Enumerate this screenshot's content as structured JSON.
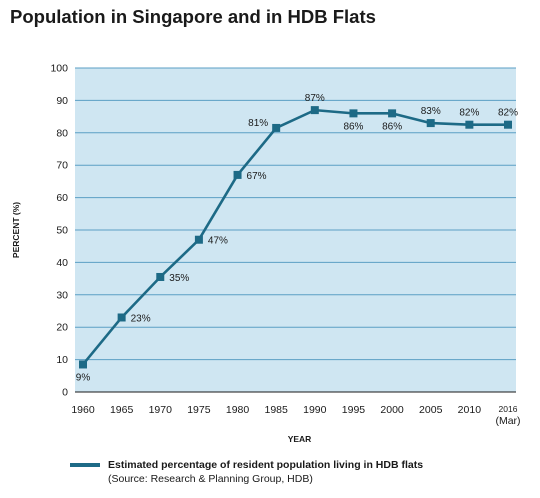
{
  "chart_data": {
    "type": "line",
    "title": "Population in Singapore and in HDB Flats",
    "xlabel": "YEAR",
    "ylabel": "PERCENT (%)",
    "ylim": [
      0,
      100
    ],
    "yticks": [
      0,
      10,
      20,
      30,
      40,
      50,
      60,
      70,
      80,
      90,
      100
    ],
    "categories": [
      "1960",
      "1965",
      "1970",
      "1975",
      "1980",
      "1985",
      "1990",
      "1995",
      "2000",
      "2005",
      "2010",
      "2016"
    ],
    "category_sublabels": [
      "",
      "",
      "",
      "",
      "",
      "",
      "",
      "",
      "",
      "",
      "",
      "(Mar)"
    ],
    "series": [
      {
        "name": "Estimated percentage of resident population living in HDB flats",
        "values": [
          8.5,
          23,
          35.5,
          47,
          67,
          81.5,
          87,
          86,
          86,
          83,
          82.5,
          82.5
        ],
        "labels": [
          "9%",
          "23%",
          "35%",
          "47%",
          "67%",
          "81%",
          "87%",
          "86%",
          "86%",
          "83%",
          "82%",
          "82%"
        ],
        "label_pos": [
          "below",
          "right",
          "right",
          "right",
          "right",
          "left",
          "above",
          "below",
          "below",
          "above",
          "above",
          "above"
        ]
      }
    ],
    "grid": true,
    "legend": {
      "position": "bottom-left",
      "source": "(Source: Research & Planning Group, HDB)"
    },
    "colors": {
      "plot_background": "#cfe6f2",
      "grid": "#5b9fc4",
      "line": "#1d6a86",
      "marker": "#1d6a86"
    }
  }
}
